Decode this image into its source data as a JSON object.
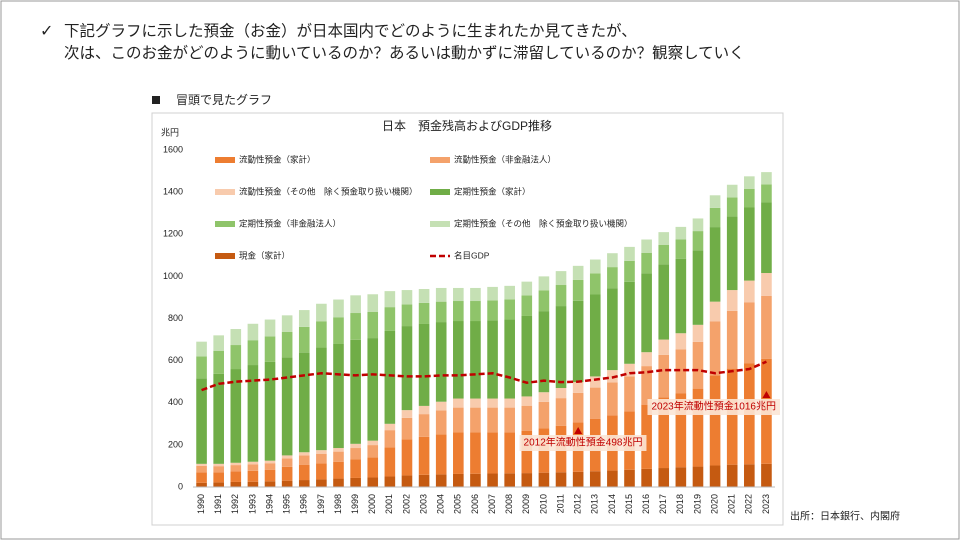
{
  "header": {
    "lines": [
      "下記グラフに示した預金（お金）が日本国内でどのように生まれたか見てきたが、",
      "次は、このお金がどのように動いているのか？あるいは動かずに滞留しているのか？観察していく"
    ]
  },
  "section_label": "冒頭で見たグラフ",
  "source": "出所：日本銀行、内閣府",
  "chart_data": {
    "type": "bar",
    "stacked": true,
    "title": "日本　預金残高およびGDP推移",
    "y_unit": "兆円",
    "categories": [
      "1990",
      "1991",
      "1992",
      "1993",
      "1994",
      "1995",
      "1996",
      "1997",
      "1998",
      "1999",
      "2000",
      "2001",
      "2002",
      "2003",
      "2004",
      "2005",
      "2006",
      "2007",
      "2008",
      "2009",
      "2010",
      "2011",
      "2012",
      "2013",
      "2014",
      "2015",
      "2016",
      "2017",
      "2018",
      "2019",
      "2020",
      "2021",
      "2022",
      "2023"
    ],
    "ylim": [
      0,
      1600
    ],
    "yticks": [
      0,
      200,
      400,
      600,
      800,
      1000,
      1200,
      1400,
      1600
    ],
    "grid": false,
    "series": [
      {
        "name": "現金（家計）",
        "color": "#c55a11",
        "values": [
          20,
          22,
          24,
          25,
          27,
          30,
          33,
          36,
          40,
          43,
          45,
          50,
          55,
          58,
          60,
          62,
          63,
          64,
          65,
          66,
          68,
          70,
          72,
          75,
          78,
          82,
          86,
          90,
          94,
          97,
          102,
          106,
          108,
          110
        ]
      },
      {
        "name": "流動性預金（家計）",
        "color": "#ed7d31",
        "values": [
          50,
          48,
          50,
          52,
          54,
          66,
          73,
          76,
          80,
          89,
          96,
          138,
          171,
          180,
          190,
          197,
          196,
          196,
          195,
          200,
          210,
          220,
          234,
          248,
          262,
          277,
          305,
          336,
          350,
          370,
          428,
          456,
          480,
          498
        ]
      },
      {
        "name": "流動性預金（非金融法人）",
        "color": "#f4a26b",
        "values": [
          30,
          29,
          30,
          31,
          32,
          40,
          44,
          46,
          48,
          53,
          58,
          82,
          102,
          108,
          114,
          118,
          118,
          117,
          117,
          120,
          126,
          132,
          141,
          149,
          157,
          166,
          183,
          201,
          210,
          222,
          257,
          274,
          288,
          299
        ]
      },
      {
        "name": "流動性預金（その他　除く預金取り扱い機関）",
        "color": "#f8cbad",
        "values": [
          10,
          11,
          11,
          12,
          12,
          14,
          15,
          17,
          17,
          20,
          21,
          30,
          37,
          39,
          41,
          43,
          43,
          43,
          43,
          44,
          46,
          48,
          51,
          53,
          58,
          60,
          66,
          73,
          76,
          81,
          93,
          99,
          104,
          109
        ]
      },
      {
        "name": "定期性預金（家計）",
        "color": "#70ad47",
        "values": [
          406,
          427,
          445,
          459,
          469,
          466,
          473,
          487,
          494,
          494,
          487,
          441,
          399,
          389,
          378,
          368,
          368,
          371,
          375,
          382,
          385,
          389,
          386,
          389,
          389,
          389,
          375,
          357,
          354,
          354,
          354,
          350,
          347,
          335
        ]
      },
      {
        "name": "定期性預金（非金融法人）",
        "color": "#8fc46a",
        "values": [
          104,
          110,
          114,
          118,
          121,
          120,
          122,
          125,
          127,
          127,
          125,
          113,
          103,
          100,
          97,
          95,
          95,
          95,
          96,
          98,
          99,
          100,
          99,
          100,
          100,
          100,
          96,
          92,
          91,
          91,
          91,
          90,
          89,
          86
        ]
      },
      {
        "name": "定期性預金（その他　除く預金取り扱い機関）",
        "color": "#c5e0b4",
        "values": [
          70,
          73,
          76,
          78,
          80,
          79,
          80,
          83,
          84,
          84,
          83,
          76,
          68,
          66,
          65,
          62,
          62,
          64,
          64,
          65,
          66,
          66,
          67,
          66,
          66,
          66,
          64,
          61,
          60,
          60,
          60,
          60,
          59,
          58
        ]
      },
      {
        "name": "名目GDP",
        "type": "line",
        "color": "#c00000",
        "dashed": true,
        "values": [
          460,
          490,
          500,
          505,
          510,
          520,
          530,
          540,
          535,
          530,
          535,
          530,
          525,
          525,
          530,
          530,
          535,
          540,
          520,
          495,
          505,
          498,
          500,
          510,
          520,
          540,
          545,
          555,
          555,
          555,
          540,
          550,
          560,
          595
        ]
      }
    ],
    "annotations": [
      {
        "text": "2012年流動性預金498兆円",
        "category": "2012"
      },
      {
        "text": "2023年流動性預金1016兆円",
        "category": "2023"
      }
    ]
  }
}
